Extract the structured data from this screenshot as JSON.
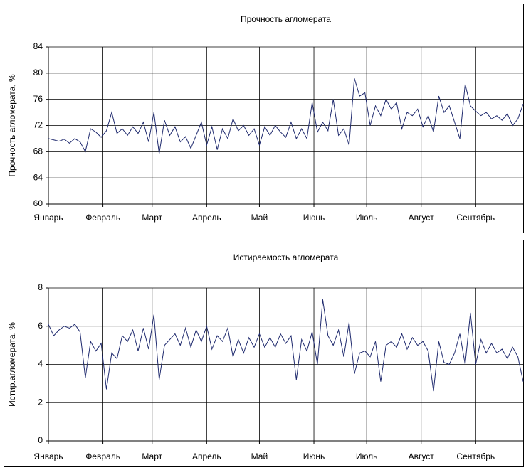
{
  "chart_data": [
    {
      "type": "line",
      "title": "Прочность агломерата",
      "ylabel": "Прочность агломерата, %",
      "x": [
        0,
        3,
        6,
        9,
        12,
        15,
        18,
        21,
        24,
        27,
        30,
        33,
        36,
        39,
        42,
        45,
        48,
        51,
        54,
        57,
        60,
        63,
        66,
        69,
        72,
        75,
        78,
        81,
        84,
        87,
        90,
        93,
        96,
        99,
        102,
        105,
        108,
        111,
        114,
        117,
        120,
        123,
        126,
        129,
        132,
        135,
        138,
        141,
        144,
        147,
        150,
        153,
        156,
        159,
        162,
        165,
        168,
        171,
        174,
        177,
        180,
        183,
        186,
        189,
        192,
        195,
        198,
        201,
        204,
        207,
        210,
        213,
        216,
        219,
        222,
        225,
        228,
        231,
        234,
        237,
        240,
        243,
        246,
        249,
        252,
        255,
        258,
        261,
        264,
        267,
        270
      ],
      "values": [
        70,
        69.8,
        69.6,
        69.9,
        69.3,
        70,
        69.5,
        68,
        71.5,
        71,
        70.2,
        71.2,
        74,
        70.8,
        71.5,
        70.5,
        71.8,
        70.8,
        72.5,
        69.5,
        74,
        67.7,
        72.8,
        70.5,
        71.8,
        69.5,
        70.3,
        68.5,
        70.5,
        72.5,
        69,
        71.8,
        68.3,
        71.5,
        70,
        73,
        71.2,
        72,
        70.5,
        71.5,
        69,
        71.8,
        70.5,
        72,
        71,
        70.2,
        72.5,
        70,
        71.5,
        70,
        75.5,
        71,
        72.5,
        71.2,
        76,
        70.5,
        71.5,
        69,
        79.2,
        76.5,
        77,
        72,
        75,
        73.5,
        76,
        74.5,
        75.5,
        71.5,
        74,
        73.5,
        74.5,
        71.8,
        73.5,
        71,
        76.5,
        74,
        75,
        72.5,
        70,
        78.3,
        75,
        74.2,
        73.5,
        74,
        73,
        73.5,
        72.8,
        73.8,
        72,
        73,
        75.3
      ],
      "color": "#1f2a6e",
      "xlim": [
        0,
        270
      ],
      "xticks": [
        {
          "value": 0,
          "label": "Январь"
        },
        {
          "value": 31,
          "label": "Февраль"
        },
        {
          "value": 59,
          "label": "Март"
        },
        {
          "value": 90,
          "label": "Апрель"
        },
        {
          "value": 120,
          "label": "Май"
        },
        {
          "value": 151,
          "label": "Июнь"
        },
        {
          "value": 181,
          "label": "Июль"
        },
        {
          "value": 212,
          "label": "Август"
        },
        {
          "value": 243,
          "label": "Сентябрь"
        }
      ],
      "ylim": [
        60,
        84
      ],
      "yticks": [
        60,
        64,
        68,
        72,
        76,
        80,
        84
      ],
      "grid": true
    },
    {
      "type": "line",
      "title": "Истираемость агломерата",
      "ylabel": "Истир.агломерата, %",
      "x": [
        0,
        3,
        6,
        9,
        12,
        15,
        18,
        21,
        24,
        27,
        30,
        33,
        36,
        39,
        42,
        45,
        48,
        51,
        54,
        57,
        60,
        63,
        66,
        69,
        72,
        75,
        78,
        81,
        84,
        87,
        90,
        93,
        96,
        99,
        102,
        105,
        108,
        111,
        114,
        117,
        120,
        123,
        126,
        129,
        132,
        135,
        138,
        141,
        144,
        147,
        150,
        153,
        156,
        159,
        162,
        165,
        168,
        171,
        174,
        177,
        180,
        183,
        186,
        189,
        192,
        195,
        198,
        201,
        204,
        207,
        210,
        213,
        216,
        219,
        222,
        225,
        228,
        231,
        234,
        237,
        240,
        243,
        246,
        249,
        252,
        255,
        258,
        261,
        264,
        267,
        270
      ],
      "values": [
        6.1,
        5.5,
        5.8,
        6,
        5.9,
        6.1,
        5.7,
        3.3,
        5.2,
        4.7,
        5.1,
        2.7,
        4.6,
        4.3,
        5.5,
        5.2,
        5.8,
        4.7,
        5.9,
        4.8,
        6.6,
        3.2,
        5,
        5.3,
        5.6,
        5,
        5.9,
        4.9,
        5.8,
        5.2,
        6,
        4.8,
        5.5,
        5.2,
        5.9,
        4.4,
        5.3,
        4.6,
        5.4,
        4.9,
        5.6,
        4.9,
        5.4,
        4.9,
        5.6,
        5.1,
        5.5,
        3.2,
        5.3,
        4.7,
        5.7,
        4,
        7.4,
        5.5,
        5,
        5.8,
        4.4,
        6.2,
        3.5,
        4.6,
        4.7,
        4.4,
        5.2,
        3.1,
        5,
        5.2,
        4.9,
        5.6,
        4.8,
        5.4,
        5,
        5.2,
        4.7,
        2.6,
        5.2,
        4.1,
        4,
        4.6,
        5.6,
        4,
        6.7,
        4,
        5.3,
        4.6,
        5.1,
        4.6,
        4.8,
        4.3,
        4.9,
        4.4,
        3.1
      ],
      "color": "#1f2a6e",
      "xlim": [
        0,
        270
      ],
      "xticks": [
        {
          "value": 0,
          "label": "Январь"
        },
        {
          "value": 31,
          "label": "Февраль"
        },
        {
          "value": 59,
          "label": "Март"
        },
        {
          "value": 90,
          "label": "Апрель"
        },
        {
          "value": 120,
          "label": "Май"
        },
        {
          "value": 151,
          "label": "Июнь"
        },
        {
          "value": 181,
          "label": "Июль"
        },
        {
          "value": 212,
          "label": "Август"
        },
        {
          "value": 243,
          "label": "Сентябрь"
        }
      ],
      "ylim": [
        0,
        8
      ],
      "yticks": [
        0,
        2,
        4,
        6,
        8
      ],
      "grid": true
    }
  ]
}
